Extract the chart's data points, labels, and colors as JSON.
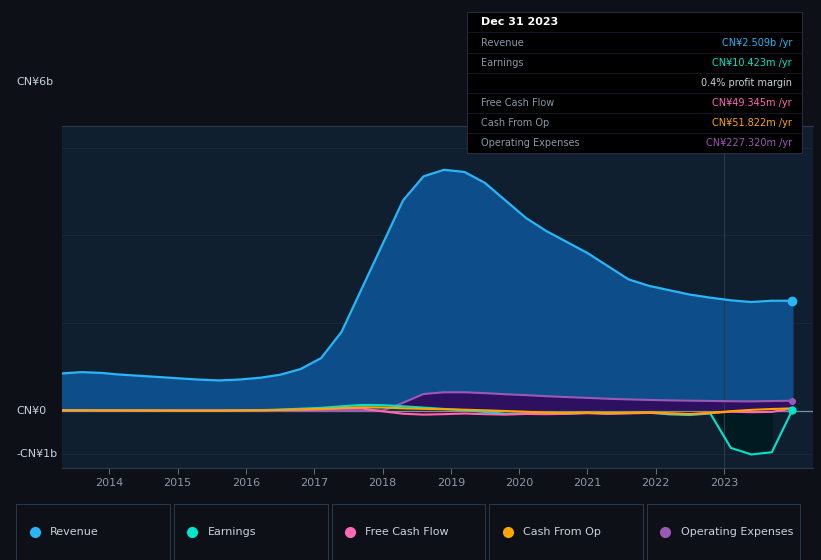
{
  "bg_color": "#0d1117",
  "plot_bg_color": "#0f1f30",
  "grid_color": "#1a2a3a",
  "text_color": "#8899aa",
  "white_text": "#c9d1d9",
  "ylim": [
    -1300000000.0,
    6500000000.0
  ],
  "xlim_start": 2013.3,
  "xlim_end": 2024.3,
  "years": [
    2013.3,
    2013.6,
    2013.9,
    2014.1,
    2014.4,
    2014.7,
    2015.0,
    2015.3,
    2015.6,
    2015.9,
    2016.2,
    2016.5,
    2016.8,
    2017.1,
    2017.4,
    2017.7,
    2018.0,
    2018.3,
    2018.6,
    2018.9,
    2019.2,
    2019.5,
    2019.8,
    2020.1,
    2020.4,
    2020.7,
    2021.0,
    2021.3,
    2021.6,
    2021.9,
    2022.2,
    2022.5,
    2022.8,
    2023.1,
    2023.4,
    2023.7,
    2024.0
  ],
  "revenue": [
    850000000.0,
    880000000.0,
    860000000.0,
    830000000.0,
    800000000.0,
    770000000.0,
    740000000.0,
    710000000.0,
    690000000.0,
    710000000.0,
    750000000.0,
    820000000.0,
    950000000.0,
    1200000000.0,
    1800000000.0,
    2800000000.0,
    3800000000.0,
    4800000000.0,
    5350000000.0,
    5500000000.0,
    5450000000.0,
    5200000000.0,
    4800000000.0,
    4400000000.0,
    4100000000.0,
    3850000000.0,
    3600000000.0,
    3300000000.0,
    3000000000.0,
    2850000000.0,
    2750000000.0,
    2650000000.0,
    2580000000.0,
    2520000000.0,
    2480000000.0,
    2510000000.0,
    2509000000.0
  ],
  "earnings": [
    5000000.0,
    5000000.0,
    4000000.0,
    3000000.0,
    2000000.0,
    1000000.0,
    0,
    0,
    0,
    5000000.0,
    12000000.0,
    25000000.0,
    45000000.0,
    65000000.0,
    100000000.0,
    130000000.0,
    125000000.0,
    100000000.0,
    70000000.0,
    40000000.0,
    10000000.0,
    -30000000.0,
    -70000000.0,
    -60000000.0,
    -75000000.0,
    -65000000.0,
    -50000000.0,
    -65000000.0,
    -55000000.0,
    -45000000.0,
    -85000000.0,
    -100000000.0,
    -65000000.0,
    -850000000.0,
    -1000000000.0,
    -950000000.0,
    10423000.0
  ],
  "free_cash_flow": [
    3000000.0,
    2000000.0,
    1000000.0,
    0,
    0,
    0,
    0,
    0,
    0,
    3000000.0,
    8000000.0,
    15000000.0,
    22000000.0,
    30000000.0,
    45000000.0,
    50000000.0,
    -15000000.0,
    -70000000.0,
    -90000000.0,
    -80000000.0,
    -65000000.0,
    -80000000.0,
    -90000000.0,
    -75000000.0,
    -80000000.0,
    -72000000.0,
    -58000000.0,
    -72000000.0,
    -62000000.0,
    -52000000.0,
    -65000000.0,
    -80000000.0,
    -55000000.0,
    -25000000.0,
    -35000000.0,
    -28000000.0,
    49345000.0
  ],
  "cash_from_op": [
    8000000.0,
    9000000.0,
    7000000.0,
    7000000.0,
    6000000.0,
    5000000.0,
    4000000.0,
    4000000.0,
    3000000.0,
    5000000.0,
    9000000.0,
    18000000.0,
    30000000.0,
    42000000.0,
    60000000.0,
    78000000.0,
    72000000.0,
    55000000.0,
    42000000.0,
    32000000.0,
    22000000.0,
    8000000.0,
    -8000000.0,
    -25000000.0,
    -45000000.0,
    -55000000.0,
    -42000000.0,
    -58000000.0,
    -50000000.0,
    -40000000.0,
    -62000000.0,
    -78000000.0,
    -52000000.0,
    -12000000.0,
    18000000.0,
    38000000.0,
    51822000.0
  ],
  "op_expenses": [
    0,
    0,
    0,
    0,
    0,
    0,
    0,
    0,
    0,
    0,
    0,
    0,
    0,
    0,
    0,
    0,
    0,
    180000000.0,
    380000000.0,
    420000000.0,
    420000000.0,
    400000000.0,
    375000000.0,
    355000000.0,
    330000000.0,
    310000000.0,
    292000000.0,
    272000000.0,
    258000000.0,
    245000000.0,
    235000000.0,
    228000000.0,
    222000000.0,
    215000000.0,
    212000000.0,
    220000000.0,
    227320000.0
  ],
  "xticks": [
    2014,
    2015,
    2016,
    2017,
    2018,
    2019,
    2020,
    2021,
    2022,
    2023
  ],
  "legend": [
    {
      "label": "Revenue",
      "color": "#29b6f6"
    },
    {
      "label": "Earnings",
      "color": "#00e5cc"
    },
    {
      "label": "Free Cash Flow",
      "color": "#ff69b4"
    },
    {
      "label": "Cash From Op",
      "color": "#ffa500"
    },
    {
      "label": "Operating Expenses",
      "color": "#9b59b6"
    }
  ],
  "info_rows": [
    {
      "label": "Dec 31 2023",
      "value": "",
      "label_color": "#ffffff",
      "value_color": "#ffffff",
      "is_title": true
    },
    {
      "label": "Revenue",
      "value": "CN¥2.509b /yr",
      "label_color": "#8899aa",
      "value_color": "#29b6f6",
      "is_title": false
    },
    {
      "label": "Earnings",
      "value": "CN¥10.423m /yr",
      "label_color": "#8899aa",
      "value_color": "#00e5cc",
      "is_title": false
    },
    {
      "label": "",
      "value": "0.4% profit margin",
      "label_color": "#8899aa",
      "value_color": "#c9d1d9",
      "is_title": false
    },
    {
      "label": "Free Cash Flow",
      "value": "CN¥49.345m /yr",
      "label_color": "#8899aa",
      "value_color": "#ff69b4",
      "is_title": false
    },
    {
      "label": "Cash From Op",
      "value": "CN¥51.822m /yr",
      "label_color": "#8899aa",
      "value_color": "#ffa500",
      "is_title": false
    },
    {
      "label": "Operating Expenses",
      "value": "CN¥227.320m /yr",
      "label_color": "#8899aa",
      "value_color": "#9b59b6",
      "is_title": false
    }
  ]
}
